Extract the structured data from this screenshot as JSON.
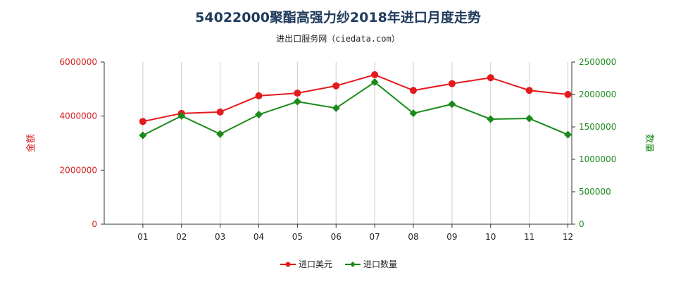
{
  "title": "54022000聚酯高强力纱2018年进口月度走势",
  "subtitle": "进出口服务网（ciedata.com）",
  "chart_data": {
    "type": "line",
    "categories": [
      "01",
      "02",
      "03",
      "04",
      "05",
      "06",
      "07",
      "08",
      "09",
      "10",
      "11",
      "12"
    ],
    "series": [
      {
        "name": "进口美元",
        "axis": "left",
        "color": "#e41a1c",
        "marker": "circle",
        "values": [
          3800000,
          4100000,
          4150000,
          4750000,
          4850000,
          5120000,
          5530000,
          4950000,
          5200000,
          5420000,
          4950000,
          4800000
        ]
      },
      {
        "name": "进口数量",
        "axis": "right",
        "color": "#1a8a1a",
        "marker": "diamond",
        "values": [
          1370000,
          1670000,
          1390000,
          1690000,
          1890000,
          1790000,
          2190000,
          1710000,
          1850000,
          1620000,
          1630000,
          1380000
        ]
      }
    ],
    "y_left": {
      "label": "金额",
      "min": 0,
      "max": 6000000,
      "ticks": [
        "0",
        "2000000",
        "4000000",
        "6000000"
      ]
    },
    "y_right": {
      "label": "数量",
      "min": 0,
      "max": 2500000,
      "ticks": [
        "0",
        "500000",
        "1000000",
        "1500000",
        "2000000",
        "2500000"
      ]
    },
    "grid": "vertical",
    "legend": "bottom-center"
  }
}
